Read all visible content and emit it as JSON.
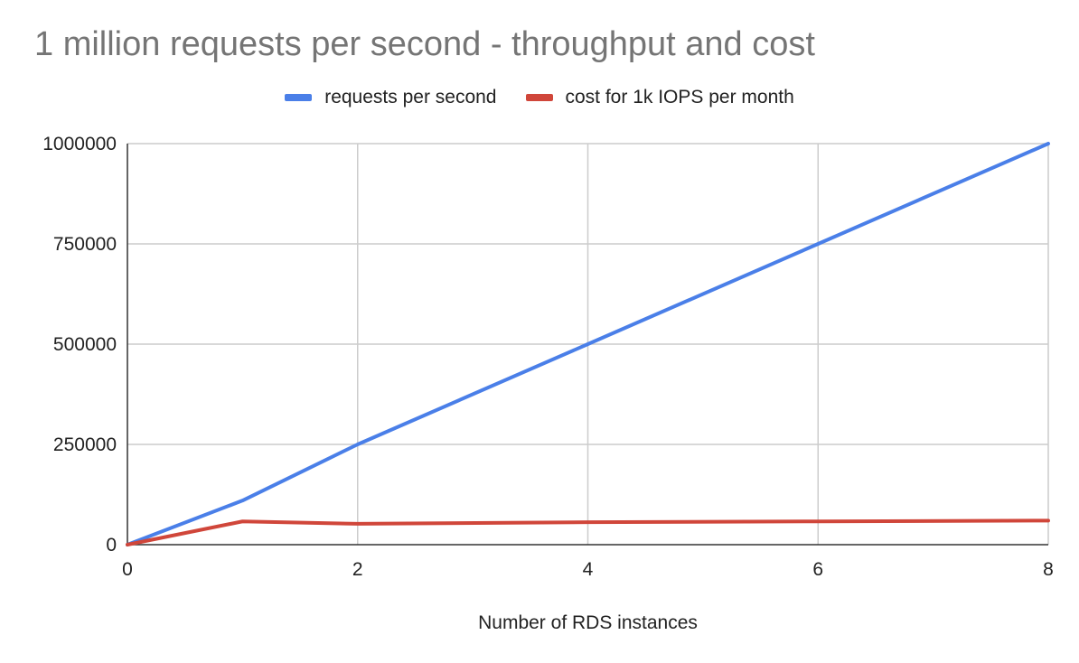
{
  "chart_data": {
    "type": "line",
    "title": "1 million requests per second - throughput and cost",
    "xlabel": "Number of RDS instances",
    "ylabel": "",
    "xlim": [
      0,
      8
    ],
    "ylim": [
      0,
      1000000
    ],
    "x_ticks": [
      0,
      2,
      4,
      6,
      8
    ],
    "y_ticks": [
      0,
      250000,
      500000,
      750000,
      1000000
    ],
    "grid": true,
    "legend_position": "top",
    "series": [
      {
        "name": "requests per second",
        "color": "#4a7fe8",
        "x": [
          0,
          1,
          2,
          4,
          6,
          8
        ],
        "y": [
          0,
          110000,
          250000,
          500000,
          750000,
          1000000
        ]
      },
      {
        "name": "cost for 1k IOPS per month",
        "color": "#d0463a",
        "x": [
          0,
          1,
          2,
          4,
          6,
          8
        ],
        "y": [
          0,
          58000,
          52000,
          56000,
          58000,
          60000
        ]
      }
    ]
  }
}
